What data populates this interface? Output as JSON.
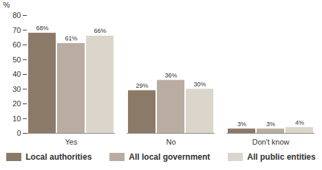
{
  "chart_data": {
    "type": "bar",
    "ylabel": "%",
    "categories": [
      "Yes",
      "No",
      "Don't know"
    ],
    "series": [
      {
        "name": "Local authorities",
        "color": "#8c7a68",
        "values": [
          68,
          29,
          3
        ],
        "value_labels": [
          "68%",
          "29%",
          "3%"
        ]
      },
      {
        "name": "All local government",
        "color": "#b8ada0",
        "values": [
          61,
          36,
          3
        ],
        "value_labels": [
          "61%",
          "36%",
          "3%"
        ]
      },
      {
        "name": "All public entities",
        "color": "#dbd5cc",
        "values": [
          66,
          30,
          4
        ],
        "value_labels": [
          "66%",
          "30%",
          "4%"
        ]
      }
    ],
    "ylim": [
      0,
      80
    ],
    "yticks": [
      0,
      10,
      20,
      30,
      40,
      50,
      60,
      70,
      80
    ],
    "data_labels": true,
    "legend": "bottom"
  }
}
